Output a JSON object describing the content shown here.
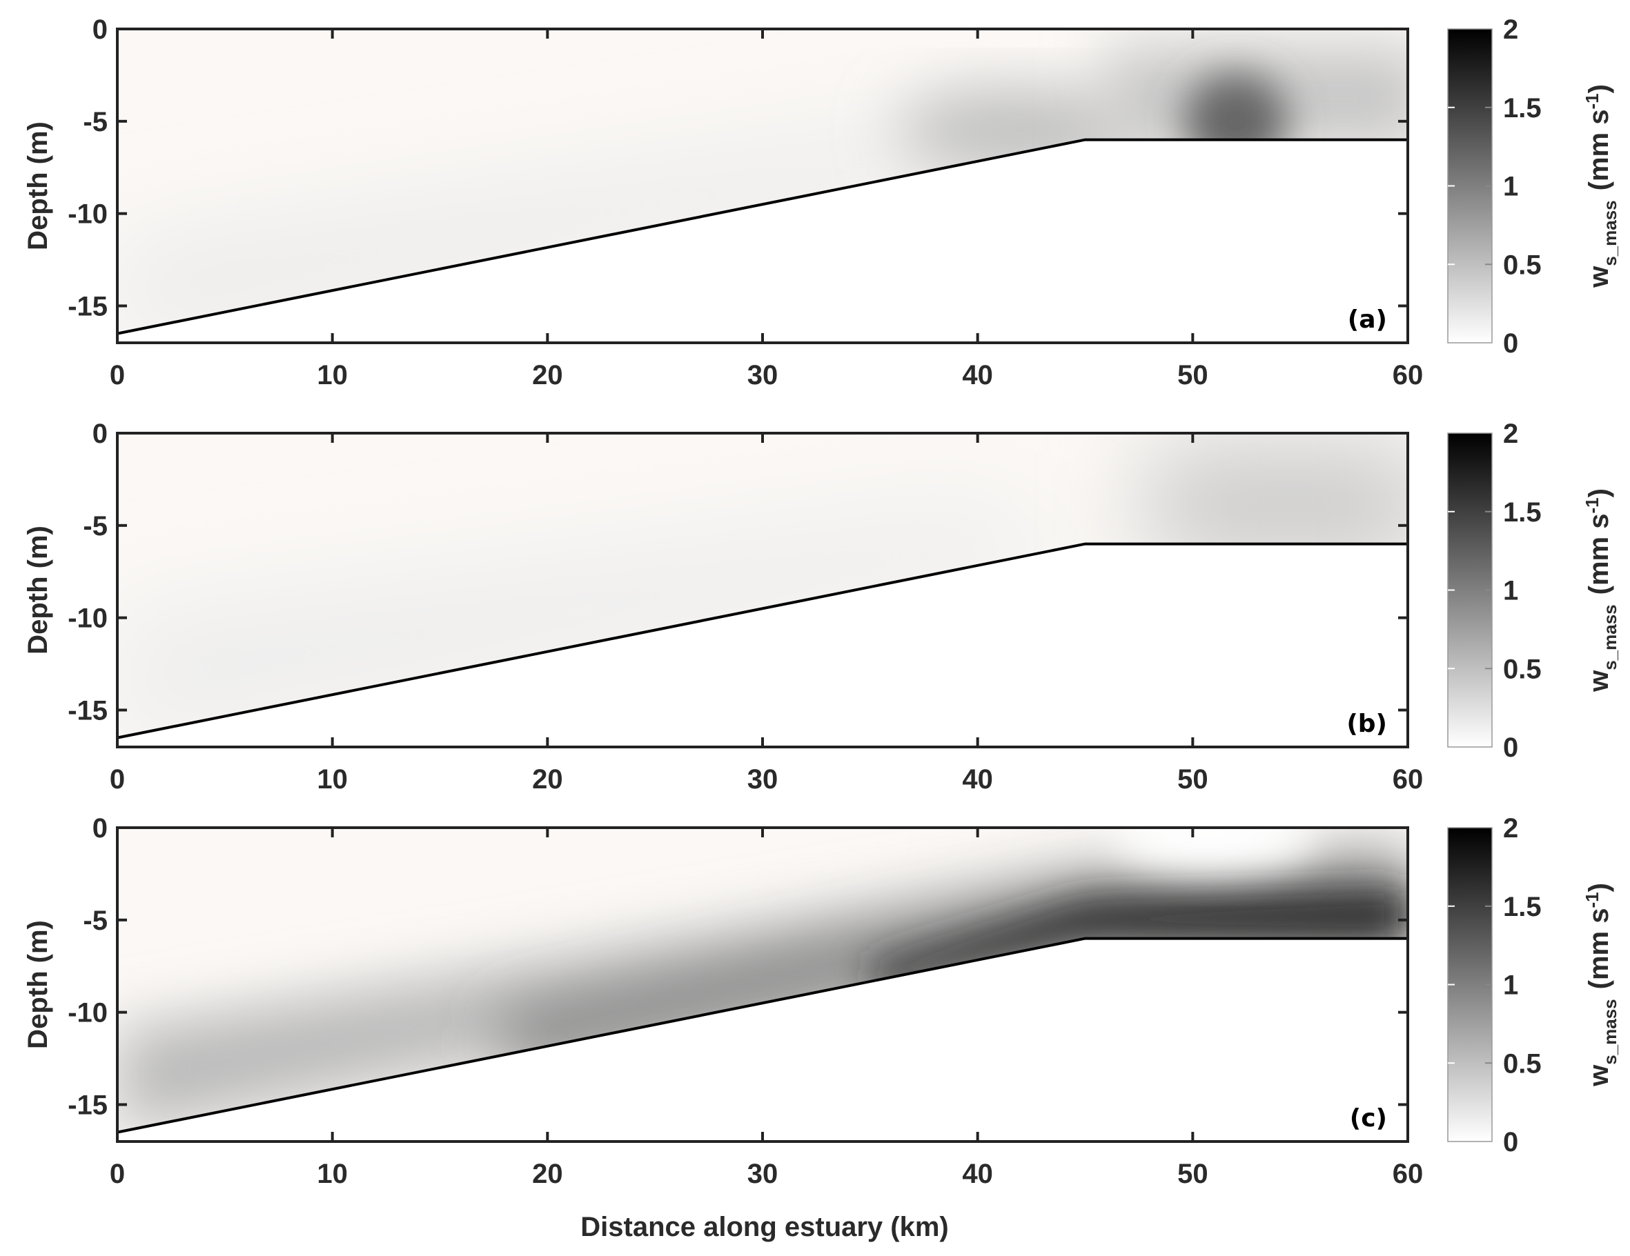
{
  "chart_data": [
    {
      "type": "heatmap",
      "panel_label": "(a)",
      "xlabel": "",
      "ylabel": "Depth (m)",
      "xlim": [
        0,
        60
      ],
      "ylim": [
        -17,
        0
      ],
      "x_ticks": [
        "0",
        "10",
        "20",
        "30",
        "40",
        "50",
        "60"
      ],
      "y_ticks": [
        "0",
        "-5",
        "-10",
        "-15"
      ],
      "bed_profile": {
        "x": [
          0,
          45,
          60
        ],
        "depth": [
          -16.5,
          -6,
          -6
        ]
      },
      "colorbar": {
        "label_main": "w",
        "label_sub": "s_mass",
        "label_units": "(mm s",
        "label_exp": "-1",
        "label_close": ")",
        "range": [
          0,
          2
        ],
        "ticks": [
          "2",
          "1.5",
          "1",
          "0.5",
          "0"
        ],
        "colormap": "white-to-black"
      },
      "features": [
        {
          "x_km": 52,
          "depth_m": -5,
          "value_mm_s": 1.2,
          "description": "dark maximum"
        },
        {
          "x_km": 60,
          "depth_m": -3,
          "value_mm_s": 0.5
        },
        {
          "x_km": 42,
          "depth_m": -5.5,
          "value_mm_s": 0.5
        }
      ]
    },
    {
      "type": "heatmap",
      "panel_label": "(b)",
      "xlabel": "",
      "ylabel": "Depth (m)",
      "xlim": [
        0,
        60
      ],
      "ylim": [
        -17,
        0
      ],
      "x_ticks": [
        "0",
        "10",
        "20",
        "30",
        "40",
        "50",
        "60"
      ],
      "y_ticks": [
        "0",
        "-5",
        "-10",
        "-15"
      ],
      "bed_profile": {
        "x": [
          0,
          45,
          60
        ],
        "depth": [
          -16.5,
          -6,
          -6
        ]
      },
      "colorbar": {
        "label_main": "w",
        "label_sub": "s_mass",
        "label_units": "(mm s",
        "label_exp": "-1",
        "label_close": ")",
        "range": [
          0,
          2
        ],
        "ticks": [
          "2",
          "1.5",
          "1",
          "0.5",
          "0"
        ],
        "colormap": "white-to-black"
      },
      "features": [
        {
          "x_km": 59,
          "depth_m": -5,
          "value_mm_s": 0.6
        }
      ]
    },
    {
      "type": "heatmap",
      "panel_label": "(c)",
      "xlabel": "Distance along estuary (km)",
      "ylabel": "Depth (m)",
      "xlim": [
        0,
        60
      ],
      "ylim": [
        -17,
        0
      ],
      "x_ticks": [
        "0",
        "10",
        "20",
        "30",
        "40",
        "50",
        "60"
      ],
      "y_ticks": [
        "0",
        "-5",
        "-10",
        "-15"
      ],
      "bed_profile": {
        "x": [
          0,
          45,
          60
        ],
        "depth": [
          -16.5,
          -6,
          -6
        ]
      },
      "colorbar": {
        "label_main": "w",
        "label_sub": "s_mass",
        "label_units": "(mm s",
        "label_exp": "-1",
        "label_close": ")",
        "range": [
          0,
          2
        ],
        "ticks": [
          "2",
          "1.5",
          "1",
          "0.5",
          "0"
        ],
        "colormap": "white-to-black"
      },
      "features": [
        {
          "x_km": 45,
          "depth_m": -5,
          "value_mm_s": 1.7
        },
        {
          "x_km": 60,
          "depth_m": -5,
          "value_mm_s": 1.9
        },
        {
          "x_km": 20,
          "depth_m": -10,
          "value_mm_s": 0.8
        },
        {
          "x_km": 5,
          "depth_m": -14,
          "value_mm_s": 0.4
        }
      ]
    }
  ]
}
